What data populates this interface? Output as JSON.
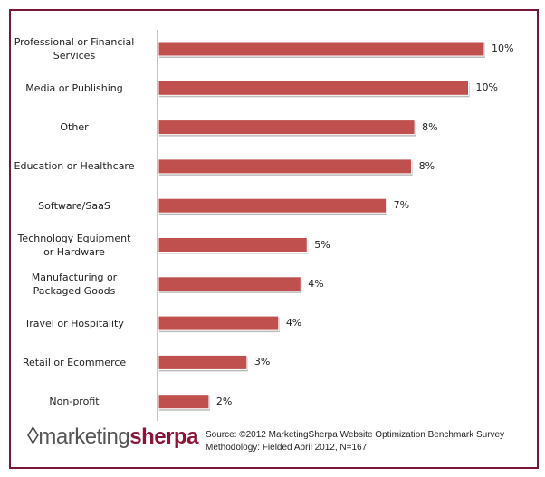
{
  "chart_data": {
    "type": "bar",
    "orientation": "horizontal",
    "categories": [
      "Professional or Financial Services",
      "Media or Publishing",
      "Other",
      "Education or Healthcare",
      "Software/SaaS",
      "Technology Equipment or Hardware",
      "Manufacturing or Packaged Goods",
      "Travel or Hospitality",
      "Retail or Ecommerce",
      "Non-profit"
    ],
    "category_lines": [
      [
        "Professional or Financial",
        "Services"
      ],
      [
        "Media or Publishing"
      ],
      [
        "Other"
      ],
      [
        "Education or Healthcare"
      ],
      [
        "Software/SaaS"
      ],
      [
        "Technology Equipment",
        "or Hardware"
      ],
      [
        "Manufacturing or",
        "Packaged Goods"
      ],
      [
        "Travel or Hospitality"
      ],
      [
        "Retail or Ecommerce"
      ],
      [
        "Non-profit"
      ]
    ],
    "values": [
      10.3,
      9.8,
      8.1,
      8.0,
      7.2,
      4.7,
      4.5,
      3.8,
      2.8,
      1.6
    ],
    "data_labels": [
      "10%",
      "10%",
      "8%",
      "8%",
      "7%",
      "5%",
      "4%",
      "4%",
      "3%",
      "2%"
    ],
    "xlim": [
      0,
      10.3
    ],
    "grid": false,
    "bar_color": "#c0504d"
  },
  "footer": {
    "logo_light": "marketing",
    "logo_bold": "sherpa",
    "source": "Source: ©2012 MarketingSherpa Website Optimization Benchmark Survey",
    "methodology": "Methodology: Fielded April 2012, N=167"
  },
  "colors": {
    "frame": "#7a1535"
  }
}
